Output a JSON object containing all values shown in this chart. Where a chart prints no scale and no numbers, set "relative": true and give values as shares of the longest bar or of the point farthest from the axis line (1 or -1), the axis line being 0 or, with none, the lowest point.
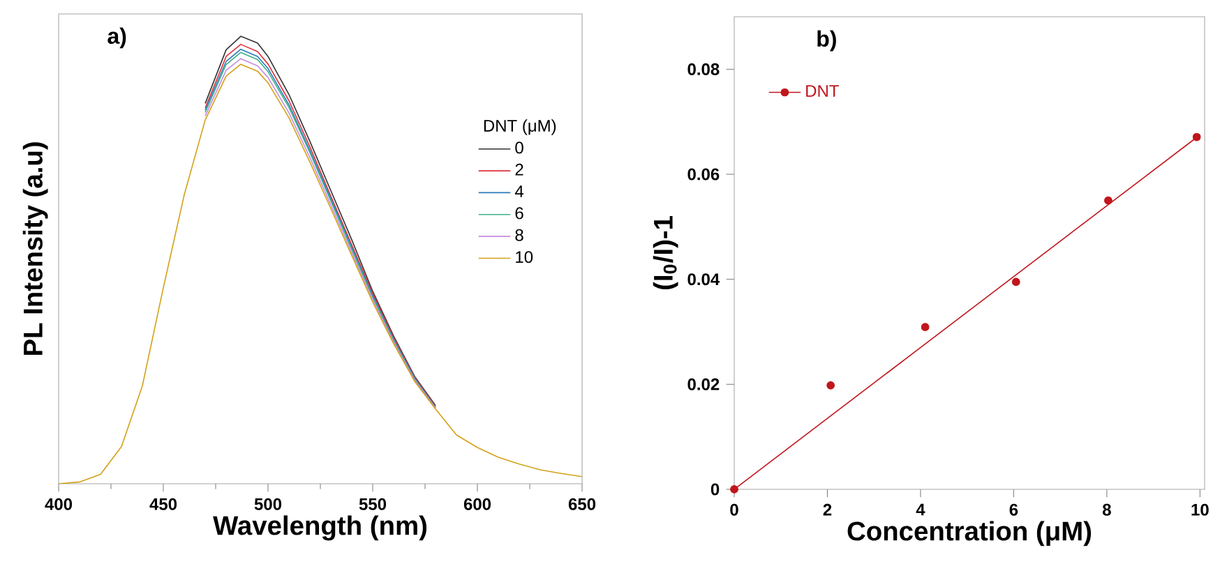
{
  "chart_data": [
    {
      "type": "line",
      "relative": true,
      "xlabel": "Wavelength (nm)",
      "ylabel": "PL Intensity (a.u)",
      "legend_title": "DNT (μM)",
      "legend": "right",
      "tick_labels": "x",
      "annotations": [
        "a)"
      ],
      "xlim": [
        400,
        650
      ],
      "xticks": [
        400,
        450,
        500,
        550,
        600,
        650
      ],
      "x": [
        400,
        410,
        420,
        430,
        440,
        450,
        460,
        470,
        480,
        487,
        495,
        500,
        510,
        520,
        530,
        540,
        550,
        560,
        570,
        580,
        590,
        600,
        610,
        620,
        630,
        640,
        650
      ],
      "series": [
        {
          "name": "0",
          "color": "#333333",
          "values": [
            null,
            null,
            null,
            null,
            null,
            null,
            null,
            0.85,
            0.97,
            1.0,
            0.985,
            0.955,
            0.87,
            0.765,
            0.655,
            0.545,
            0.43,
            0.33,
            0.24,
            0.175,
            null,
            null,
            null,
            null,
            null,
            null,
            null
          ]
        },
        {
          "name": "2",
          "color": "#e0303a",
          "values": [
            null,
            null,
            null,
            null,
            null,
            null,
            null,
            0.84,
            0.955,
            0.982,
            0.966,
            0.938,
            0.856,
            0.753,
            0.643,
            0.534,
            0.425,
            0.327,
            0.238,
            0.173,
            null,
            null,
            null,
            null,
            null,
            null,
            null
          ]
        },
        {
          "name": "4",
          "color": "#2a7ab8",
          "values": [
            null,
            null,
            null,
            null,
            null,
            null,
            null,
            0.835,
            0.944,
            0.971,
            0.955,
            0.928,
            0.847,
            0.745,
            0.637,
            0.528,
            0.42,
            0.323,
            0.236,
            0.171,
            null,
            null,
            null,
            null,
            null,
            null,
            null
          ]
        },
        {
          "name": "6",
          "color": "#3cb08a",
          "values": [
            null,
            null,
            null,
            null,
            null,
            null,
            null,
            0.83,
            0.937,
            0.964,
            0.948,
            0.921,
            0.841,
            0.74,
            0.632,
            0.524,
            0.417,
            0.321,
            0.234,
            0.17,
            null,
            null,
            null,
            null,
            null,
            null,
            null
          ]
        },
        {
          "name": "8",
          "color": "#c58ce0",
          "values": [
            null,
            null,
            null,
            null,
            null,
            null,
            null,
            0.822,
            0.924,
            0.95,
            0.934,
            0.908,
            0.829,
            0.729,
            0.623,
            0.517,
            0.412,
            0.317,
            0.232,
            0.169,
            null,
            null,
            null,
            null,
            null,
            null,
            null
          ]
        },
        {
          "name": "10",
          "color": "#d4a017",
          "values": [
            0,
            0.004,
            0.021,
            0.083,
            0.219,
            0.438,
            0.646,
            0.813,
            0.911,
            0.9375,
            0.922,
            0.896,
            0.818,
            0.719,
            0.615,
            0.51,
            0.406,
            0.313,
            0.229,
            0.167,
            0.109,
            0.081,
            0.059,
            0.044,
            0.031,
            0.023,
            0.016
          ]
        }
      ]
    },
    {
      "type": "scatter",
      "xlabel": "Concentration (μM)",
      "ylabel": "(I$_{0}$/I)-1",
      "legend": "top left",
      "annotations": [
        "b)"
      ],
      "xlim": [
        0,
        10.1
      ],
      "ylim": [
        0,
        0.09
      ],
      "xticks": [
        0,
        2,
        4,
        6,
        8,
        10
      ],
      "yticks": [
        0,
        0.02,
        0.04,
        0.06,
        0.08
      ],
      "series": [
        {
          "name": "DNT",
          "color": "#c0161c",
          "marker": "circle",
          "x": [
            0,
            2.07,
            4.1,
            6.05,
            8.03,
            9.93
          ],
          "values": [
            0,
            0.0198,
            0.0309,
            0.0395,
            0.055,
            0.0671
          ]
        },
        {
          "type": "line",
          "color": "#c0161c",
          "marker": "none",
          "x": [
            0,
            10
          ],
          "values": [
            0,
            0.0675
          ]
        }
      ]
    }
  ]
}
